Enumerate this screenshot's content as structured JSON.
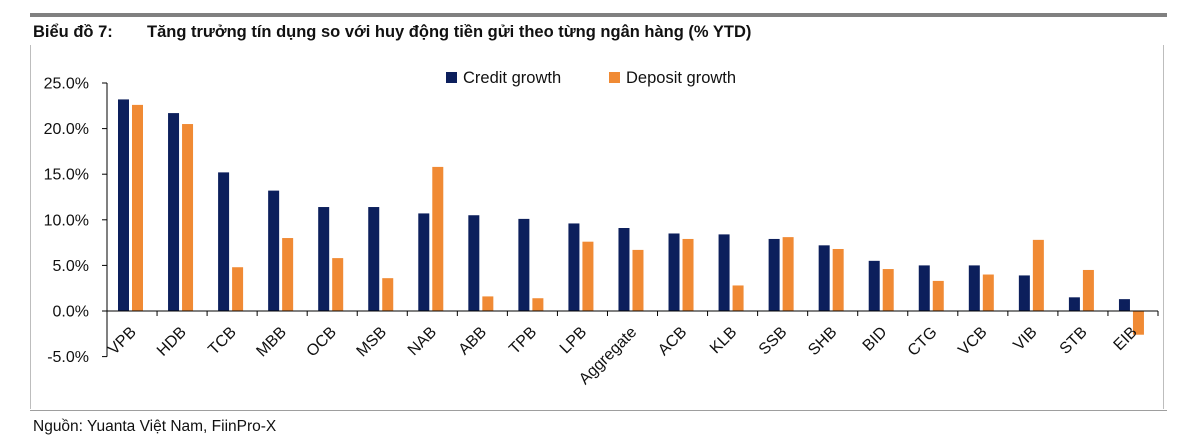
{
  "title": {
    "label": "Biểu đồ 7:",
    "text": "Tăng trưởng tín dụng so với huy động tiền gửi theo từng ngân hàng (% YTD)"
  },
  "source": "Nguồn: Yuanta Việt Nam, FiinPro-X",
  "colors": {
    "credit": "#0c1f5c",
    "deposit": "#f08a34",
    "axis": "#000000",
    "frame": "#bdbdbd"
  },
  "chart_data": {
    "type": "bar",
    "title": "Tăng trưởng tín dụng so với huy động tiền gửi theo từng ngân hàng (% YTD)",
    "xlabel": "",
    "ylabel": "",
    "ylim": [
      -5,
      25
    ],
    "yticks": [
      25,
      20,
      15,
      10,
      5,
      0,
      -5
    ],
    "ytick_labels": [
      "25.0%",
      "20.0%",
      "15.0%",
      "10.0%",
      "5.0%",
      "0.0%",
      "-5.0%"
    ],
    "grid": false,
    "legend_position": "top-center",
    "categories": [
      "VPB",
      "HDB",
      "TCB",
      "MBB",
      "OCB",
      "MSB",
      "NAB",
      "ABB",
      "TPB",
      "LPB",
      "Aggregate",
      "ACB",
      "KLB",
      "SSB",
      "SHB",
      "BID",
      "CTG",
      "VCB",
      "VIB",
      "STB",
      "EIB"
    ],
    "series": [
      {
        "name": "Credit growth",
        "values": [
          23.2,
          21.7,
          15.2,
          13.2,
          11.4,
          11.4,
          10.7,
          10.5,
          10.1,
          9.6,
          9.1,
          8.5,
          8.4,
          7.9,
          7.2,
          5.5,
          5.0,
          5.0,
          3.9,
          1.5,
          1.3
        ]
      },
      {
        "name": "Deposit growth",
        "values": [
          22.6,
          20.5,
          4.8,
          8.0,
          5.8,
          3.6,
          15.8,
          1.6,
          1.4,
          7.6,
          6.7,
          7.9,
          2.8,
          8.1,
          6.8,
          4.6,
          3.3,
          4.0,
          7.8,
          4.5,
          -2.6
        ]
      }
    ]
  }
}
